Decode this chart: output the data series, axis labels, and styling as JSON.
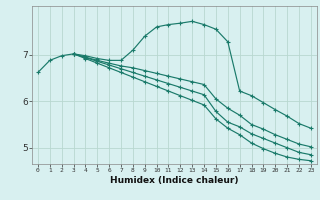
{
  "xlabel": "Humidex (Indice chaleur)",
  "ylabel": "",
  "bg_color": "#d8f0f0",
  "grid_color_major": "#b8d8d0",
  "grid_color_minor": "#c8e4e0",
  "line_color": "#1a7a6a",
  "xlim": [
    -0.5,
    23.5
  ],
  "ylim": [
    4.65,
    8.05
  ],
  "yticks": [
    5,
    6,
    7
  ],
  "xticks": [
    0,
    1,
    2,
    3,
    4,
    5,
    6,
    7,
    8,
    9,
    10,
    11,
    12,
    13,
    14,
    15,
    16,
    17,
    18,
    19,
    20,
    21,
    22,
    23
  ],
  "lines": [
    {
      "x": [
        0,
        1,
        2,
        3,
        4,
        5,
        6,
        7,
        8,
        9,
        10,
        11,
        12,
        13,
        14,
        15,
        16,
        17,
        18,
        19,
        20,
        21,
        22,
        23
      ],
      "y": [
        6.62,
        6.88,
        6.98,
        7.02,
        6.98,
        6.92,
        6.88,
        6.88,
        7.1,
        7.4,
        7.6,
        7.65,
        7.68,
        7.72,
        7.65,
        7.55,
        7.28,
        6.22,
        6.12,
        5.97,
        5.82,
        5.68,
        5.52,
        5.42
      ]
    },
    {
      "x": [
        3,
        4,
        5,
        6,
        7,
        8,
        9,
        10,
        11,
        12,
        13,
        14,
        15,
        16,
        17,
        18,
        19,
        20,
        21,
        22,
        23
      ],
      "y": [
        7.02,
        6.95,
        6.88,
        6.82,
        6.76,
        6.72,
        6.66,
        6.6,
        6.54,
        6.48,
        6.42,
        6.36,
        6.05,
        5.85,
        5.7,
        5.5,
        5.4,
        5.28,
        5.18,
        5.08,
        5.02
      ]
    },
    {
      "x": [
        3,
        4,
        5,
        6,
        7,
        8,
        9,
        10,
        11,
        12,
        13,
        14,
        15,
        16,
        17,
        18,
        19,
        20,
        21,
        22,
        23
      ],
      "y": [
        7.02,
        6.94,
        6.86,
        6.78,
        6.7,
        6.62,
        6.54,
        6.46,
        6.38,
        6.3,
        6.22,
        6.14,
        5.78,
        5.55,
        5.45,
        5.3,
        5.2,
        5.1,
        5.0,
        4.9,
        4.85
      ]
    },
    {
      "x": [
        3,
        4,
        5,
        6,
        7,
        8,
        9,
        10,
        11,
        12,
        13,
        14,
        15,
        16,
        17,
        18,
        19,
        20,
        21,
        22,
        23
      ],
      "y": [
        7.02,
        6.92,
        6.82,
        6.72,
        6.62,
        6.52,
        6.42,
        6.32,
        6.22,
        6.12,
        6.02,
        5.92,
        5.62,
        5.42,
        5.28,
        5.1,
        4.98,
        4.88,
        4.8,
        4.75,
        4.72
      ]
    }
  ]
}
